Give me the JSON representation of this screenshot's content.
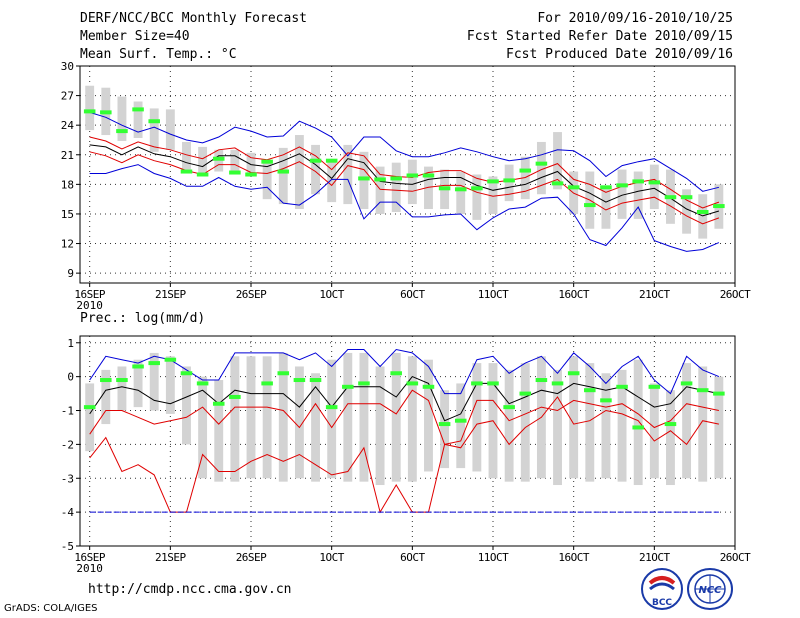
{
  "header": {
    "title": "DERF/NCC/BCC Monthly Forecast",
    "member_size": "Member Size=40",
    "variable": "Mean Surf. Temp.: °C",
    "period": "For 2010/09/16-2010/10/25",
    "started": "Fcst Started Refer Date 2010/09/15",
    "produced": "Fcst Produced Date 2010/09/16"
  },
  "footer": {
    "url": "http://cmdp.ncc.cma.gov.cn",
    "grads": "GrADS: COLA/IGES",
    "logo_left": "BCC",
    "logo_right": "NCC"
  },
  "colors": {
    "box": "#d3d3d3",
    "mean": "#000000",
    "sd": "#e00000",
    "range": "#0000d8",
    "obs": "#33ff33",
    "grid": "#333333"
  },
  "chart_data": [
    {
      "type": "line",
      "name": "temperature",
      "label": "",
      "x": [
        1,
        2,
        3,
        4,
        5,
        6,
        7,
        8,
        9,
        10,
        11,
        12,
        13,
        14,
        15,
        16,
        17,
        18,
        19,
        20,
        21,
        22,
        23,
        24,
        25,
        26,
        27,
        28,
        29,
        30,
        31,
        32,
        33,
        34,
        35,
        36,
        37,
        38,
        39,
        40
      ],
      "xticks": [
        {
          "x": 1,
          "label": "16SEP",
          "sub": "2010"
        },
        {
          "x": 6,
          "label": "21SEP"
        },
        {
          "x": 11,
          "label": "26SEP"
        },
        {
          "x": 16,
          "label": "1OCT"
        },
        {
          "x": 21,
          "label": "6OCT"
        },
        {
          "x": 26,
          "label": "11OCT"
        },
        {
          "x": 31,
          "label": "16OCT"
        },
        {
          "x": 36,
          "label": "21OCT"
        },
        {
          "x": 41,
          "label": "26OCT"
        }
      ],
      "xlim": [
        0.4,
        41
      ],
      "ylim": [
        8,
        30
      ],
      "yticks": [
        9,
        12,
        15,
        18,
        21,
        24,
        27,
        30
      ],
      "series": [
        {
          "name": "max",
          "values": [
            25.3,
            24.8,
            24.0,
            23.3,
            23.8,
            23.1,
            22.5,
            22.2,
            22.8,
            23.8,
            23.4,
            22.8,
            22.9,
            24.4,
            23.7,
            22.8,
            20.9,
            22.8,
            22.8,
            21.4,
            20.8,
            20.8,
            21.2,
            21.7,
            21.3,
            20.8,
            20.4,
            20.6,
            21.0,
            21.5,
            21.4,
            20.4,
            18.8,
            19.9,
            20.3,
            20.6,
            19.6,
            18.6,
            17.3,
            17.7
          ]
        },
        {
          "name": "sd_hi",
          "values": [
            22.8,
            22.4,
            21.6,
            22.3,
            21.8,
            21.5,
            21.0,
            20.6,
            21.5,
            21.7,
            20.7,
            20.5,
            21.0,
            21.8,
            20.9,
            19.5,
            21.2,
            20.9,
            19.0,
            18.8,
            18.7,
            19.2,
            19.4,
            19.4,
            18.6,
            18.2,
            18.4,
            18.7,
            19.5,
            20.1,
            18.5,
            18.0,
            17.2,
            17.8,
            18.2,
            18.5,
            17.5,
            16.4,
            15.6,
            16.2
          ]
        },
        {
          "name": "mean",
          "values": [
            22.0,
            21.8,
            21.0,
            21.8,
            21.1,
            20.8,
            20.2,
            19.8,
            20.9,
            20.9,
            20.0,
            19.8,
            20.4,
            21.1,
            20.0,
            18.6,
            20.6,
            20.2,
            18.3,
            18.1,
            18.0,
            18.5,
            18.7,
            18.7,
            17.9,
            17.4,
            17.7,
            18.0,
            18.7,
            19.3,
            17.8,
            17.1,
            16.2,
            16.9,
            17.3,
            17.6,
            16.6,
            15.5,
            14.8,
            15.3
          ]
        },
        {
          "name": "sd_lo",
          "values": [
            21.3,
            20.9,
            20.2,
            21.0,
            20.4,
            20.0,
            19.4,
            19.0,
            20.0,
            20.0,
            19.2,
            19.1,
            19.6,
            20.3,
            19.3,
            17.9,
            19.9,
            19.5,
            17.5,
            17.4,
            17.3,
            17.7,
            17.9,
            17.9,
            17.2,
            16.8,
            17.0,
            17.3,
            17.9,
            18.5,
            17.1,
            16.4,
            15.4,
            16.1,
            16.4,
            16.7,
            15.8,
            14.8,
            14.0,
            14.6
          ]
        },
        {
          "name": "min",
          "values": [
            19.1,
            19.1,
            19.6,
            20.0,
            19.1,
            18.6,
            17.8,
            17.8,
            18.7,
            17.8,
            17.5,
            17.7,
            16.1,
            15.9,
            17.0,
            18.5,
            18.5,
            14.5,
            16.2,
            16.2,
            14.7,
            14.7,
            14.9,
            15.0,
            13.4,
            14.6,
            15.5,
            15.7,
            16.6,
            16.7,
            15.0,
            12.4,
            11.8,
            13.6,
            15.7,
            12.3,
            11.7,
            11.2,
            11.4,
            12.1
          ]
        }
      ],
      "box_ranges": [
        [
          23.5,
          28.0
        ],
        [
          23.0,
          27.8
        ],
        [
          22.4,
          26.9
        ],
        [
          22.7,
          26.4
        ],
        [
          21.3,
          25.7
        ],
        [
          21.5,
          25.6
        ],
        [
          19.5,
          22.3
        ],
        [
          19.0,
          21.8
        ],
        [
          19.3,
          21.5
        ],
        [
          19.0,
          21.5
        ],
        [
          18.8,
          21.2
        ],
        [
          16.5,
          20.5
        ],
        [
          16.0,
          21.7
        ],
        [
          15.5,
          23.0
        ],
        [
          17.0,
          22.0
        ],
        [
          16.2,
          20.5
        ],
        [
          16.0,
          22.0
        ],
        [
          15.5,
          21.3
        ],
        [
          15.0,
          19.8
        ],
        [
          15.2,
          20.2
        ],
        [
          16.0,
          20.5
        ],
        [
          15.5,
          19.8
        ],
        [
          15.5,
          19.5
        ],
        [
          15.0,
          19.3
        ],
        [
          14.4,
          19.0
        ],
        [
          15.0,
          18.8
        ],
        [
          16.3,
          20.0
        ],
        [
          16.5,
          20.8
        ],
        [
          17.0,
          22.3
        ],
        [
          17.5,
          23.3
        ],
        [
          15.0,
          19.3
        ],
        [
          13.5,
          19.3
        ],
        [
          13.5,
          17.5
        ],
        [
          14.5,
          19.5
        ],
        [
          14.5,
          19.3
        ],
        [
          15.5,
          20.0
        ],
        [
          14.0,
          19.5
        ],
        [
          13.0,
          17.5
        ],
        [
          12.5,
          17.0
        ],
        [
          13.5,
          18.0
        ]
      ],
      "observed": [
        25.4,
        25.3,
        23.4,
        25.6,
        24.4,
        null,
        19.3,
        19.0,
        20.6,
        19.2,
        19.0,
        20.3,
        19.3,
        null,
        20.4,
        20.4,
        null,
        18.6,
        18.5,
        18.6,
        18.9,
        18.9,
        17.6,
        17.5,
        17.6,
        18.3,
        18.4,
        19.4,
        20.1,
        18.1,
        17.7,
        15.9,
        17.7,
        17.9,
        18.3,
        18.2,
        16.7,
        16.7,
        15.2,
        15.8
      ]
    },
    {
      "type": "line",
      "name": "precipitation",
      "label": "Prec.: log(mm/d)",
      "x": [
        1,
        2,
        3,
        4,
        5,
        6,
        7,
        8,
        9,
        10,
        11,
        12,
        13,
        14,
        15,
        16,
        17,
        18,
        19,
        20,
        21,
        22,
        23,
        24,
        25,
        26,
        27,
        28,
        29,
        30,
        31,
        32,
        33,
        34,
        35,
        36,
        37,
        38,
        39,
        40
      ],
      "xticks": [
        {
          "x": 1,
          "label": "16SEP",
          "sub": "2010"
        },
        {
          "x": 6,
          "label": "21SEP"
        },
        {
          "x": 11,
          "label": "26SEP"
        },
        {
          "x": 16,
          "label": "1OCT"
        },
        {
          "x": 21,
          "label": "6OCT"
        },
        {
          "x": 26,
          "label": "11OCT"
        },
        {
          "x": 31,
          "label": "16OCT"
        },
        {
          "x": 36,
          "label": "21OCT"
        },
        {
          "x": 41,
          "label": "26OCT"
        }
      ],
      "xlim": [
        0.4,
        41
      ],
      "ylim": [
        -5,
        1.2
      ],
      "yticks": [
        -5,
        -4,
        -3,
        -2,
        -1,
        0,
        1
      ],
      "series": [
        {
          "name": "max",
          "values": [
            -0.1,
            0.6,
            0.5,
            0.4,
            0.6,
            0.5,
            0.2,
            -0.1,
            -0.1,
            0.7,
            0.7,
            0.7,
            0.7,
            0.5,
            0.7,
            0.3,
            0.8,
            0.8,
            0.3,
            0.8,
            0.7,
            0.3,
            -0.5,
            -0.5,
            0.5,
            0.6,
            0.1,
            0.4,
            0.6,
            0.1,
            0.7,
            0.3,
            -0.2,
            0.3,
            0.6,
            -0.1,
            -0.5,
            0.6,
            0.2,
            0.0
          ]
        },
        {
          "name": "mean",
          "values": [
            -1.1,
            -0.4,
            -0.3,
            -0.4,
            -0.7,
            -0.8,
            -0.6,
            -0.4,
            -0.8,
            -0.4,
            -0.5,
            -0.5,
            -0.5,
            -0.9,
            -0.3,
            -0.9,
            -0.3,
            -0.3,
            -0.3,
            -0.6,
            0.0,
            -0.2,
            -1.3,
            -1.1,
            -0.2,
            -0.2,
            -0.8,
            -0.6,
            -0.4,
            -0.5,
            -0.2,
            -0.3,
            -0.4,
            -0.3,
            -0.6,
            -0.9,
            -0.8,
            -0.3,
            -0.4,
            -0.5
          ]
        },
        {
          "name": "sd_lo",
          "values": [
            -2.4,
            -1.8,
            -2.8,
            -2.6,
            -2.9,
            -4.0,
            -4.0,
            -2.3,
            -2.8,
            -2.8,
            -2.5,
            -2.3,
            -2.5,
            -2.3,
            -2.6,
            -2.9,
            -2.8,
            -2.1,
            -4.0,
            -3.2,
            -4.0,
            -4.0,
            -2.0,
            -2.1,
            -1.4,
            -1.3,
            -2.0,
            -1.5,
            -1.2,
            -0.6,
            -1.4,
            -1.3,
            -1.0,
            -1.1,
            -1.3,
            -1.9,
            -1.6,
            -2.0,
            -1.3,
            -1.4
          ]
        },
        {
          "name": "sd_hi",
          "values": [
            -1.7,
            -1.0,
            -1.0,
            -1.2,
            -1.4,
            -1.3,
            -1.2,
            -0.9,
            -1.4,
            -0.9,
            -0.9,
            -0.9,
            -1.0,
            -1.5,
            -0.8,
            -1.5,
            -0.8,
            -0.8,
            -0.8,
            -1.1,
            -0.4,
            -0.7,
            -2.0,
            -1.9,
            -0.7,
            -0.7,
            -1.3,
            -1.1,
            -0.9,
            -1.0,
            -0.7,
            -0.8,
            -0.9,
            -0.8,
            -1.1,
            -1.5,
            -1.3,
            -0.8,
            -0.9,
            -1.0
          ]
        },
        {
          "name": "min",
          "values": [
            -4.0,
            -4.0,
            -4.0,
            -4.0,
            -4.0,
            -4.0,
            -4.0,
            -4.0,
            -4.0,
            -4.0,
            -4.0,
            -4.0,
            -4.0,
            -4.0,
            -4.0,
            -4.0,
            -4.0,
            -4.0,
            -4.0,
            -4.0,
            -4.0,
            -4.0,
            -4.0,
            -4.0,
            -4.0,
            -4.0,
            -4.0,
            -4.0,
            -4.0,
            -4.0,
            -4.0,
            -4.0,
            -4.0,
            -4.0,
            -4.0,
            -4.0,
            -4.0,
            -4.0,
            -4.0,
            -4.0
          ]
        }
      ],
      "box_ranges": [
        [
          -2.2,
          -0.2
        ],
        [
          -1.4,
          0.2
        ],
        [
          -1.0,
          0.3
        ],
        [
          -0.9,
          0.5
        ],
        [
          -1.0,
          0.7
        ],
        [
          -1.1,
          0.6
        ],
        [
          -2.0,
          0.3
        ],
        [
          -3.0,
          0.0
        ],
        [
          -3.1,
          -0.1
        ],
        [
          -3.1,
          0.6
        ],
        [
          -3.0,
          0.6
        ],
        [
          -3.0,
          0.6
        ],
        [
          -3.1,
          0.7
        ],
        [
          -3.0,
          0.3
        ],
        [
          -3.1,
          0.1
        ],
        [
          -3.0,
          0.5
        ],
        [
          -3.1,
          0.7
        ],
        [
          -3.1,
          0.7
        ],
        [
          -3.2,
          0.3
        ],
        [
          -3.1,
          0.7
        ],
        [
          -3.1,
          0.6
        ],
        [
          -2.8,
          0.5
        ],
        [
          -2.7,
          -0.4
        ],
        [
          -2.7,
          -0.2
        ],
        [
          -2.8,
          0.4
        ],
        [
          -3.0,
          0.4
        ],
        [
          -3.1,
          0.2
        ],
        [
          -3.1,
          0.4
        ],
        [
          -3.0,
          0.6
        ],
        [
          -3.2,
          0.2
        ],
        [
          -3.0,
          0.6
        ],
        [
          -3.1,
          0.4
        ],
        [
          -3.0,
          0.1
        ],
        [
          -3.1,
          0.2
        ],
        [
          -3.2,
          0.5
        ],
        [
          -3.0,
          -0.2
        ],
        [
          -3.2,
          -0.4
        ],
        [
          -3.0,
          0.4
        ],
        [
          -3.1,
          0.3
        ],
        [
          -3.0,
          0.0
        ]
      ],
      "observed": [
        -0.9,
        -0.1,
        -0.1,
        0.3,
        0.4,
        0.5,
        0.1,
        -0.2,
        -0.8,
        -0.6,
        null,
        -0.2,
        0.1,
        -0.1,
        -0.1,
        -0.9,
        -0.3,
        -0.2,
        null,
        0.1,
        -0.2,
        -0.3,
        -1.4,
        -1.3,
        -0.2,
        -0.2,
        -0.9,
        -0.5,
        -0.1,
        -0.2,
        0.1,
        -0.4,
        -0.7,
        -0.3,
        -1.5,
        -0.3,
        -1.4,
        -0.2,
        -0.4,
        -0.5
      ]
    }
  ]
}
